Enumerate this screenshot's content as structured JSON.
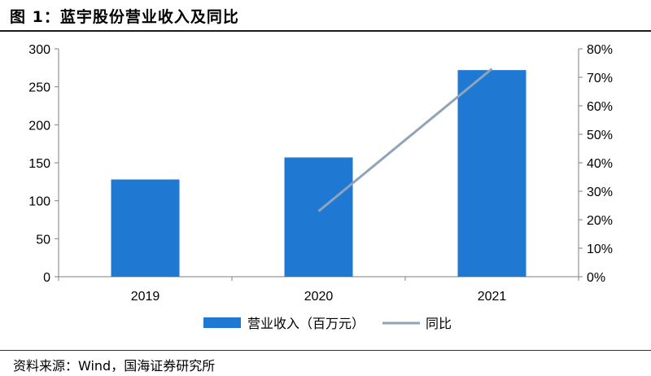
{
  "title": "图 1：蓝宇股份营业收入及同比",
  "source": "资料来源：Wind，国海证券研究所",
  "colors": {
    "bar": "#1f78d1",
    "line": "#8fa3bc",
    "axis": "#7f7f7f"
  },
  "chart_data": {
    "type": "bar",
    "categories": [
      "2019",
      "2020",
      "2021"
    ],
    "series": [
      {
        "name": "营业收入（百万元）",
        "type": "bar",
        "axis": "left",
        "values": [
          128,
          157,
          272
        ]
      },
      {
        "name": "同比",
        "type": "line",
        "axis": "right",
        "values": [
          null,
          0.23,
          0.73
        ]
      }
    ],
    "ylim_left": [
      0,
      300
    ],
    "yticks_left": [
      "0",
      "50",
      "100",
      "150",
      "200",
      "250",
      "300"
    ],
    "ylim_right": [
      0,
      0.8
    ],
    "yticks_right": [
      "0%",
      "10%",
      "20%",
      "30%",
      "40%",
      "50%",
      "60%",
      "70%",
      "80%"
    ],
    "legend": "bottom",
    "grid": false
  }
}
